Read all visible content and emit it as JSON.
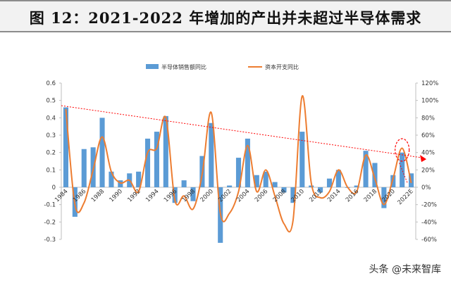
{
  "title": "图 12：2021-2022 年增加的产出并未超过半导体需求",
  "watermark": "头条 @未来智库",
  "colors": {
    "bar": "#5b9bd5",
    "line": "#ed7d31",
    "trend": "#ff0000",
    "highlight": "#ff0000"
  },
  "chart_data": {
    "type": "bar",
    "legend_position": "top",
    "x_tick_labels": [
      "1984",
      "1986",
      "1988",
      "1990",
      "1992",
      "1994",
      "1996",
      "1998",
      "2000",
      "2002",
      "2004",
      "2006",
      "2008",
      "2010",
      "2012",
      "2014",
      "2016",
      "2018",
      "2020",
      "2022E"
    ],
    "categories": [
      "1984",
      "1985",
      "1986",
      "1987",
      "1988",
      "1989",
      "1990",
      "1991",
      "1992",
      "1993",
      "1994",
      "1995",
      "1996",
      "1997",
      "1998",
      "1999",
      "2000",
      "2001",
      "2002",
      "2003",
      "2004",
      "2005",
      "2006",
      "2007",
      "2008",
      "2009",
      "2010",
      "2011",
      "2012",
      "2013",
      "2014",
      "2015",
      "2016",
      "2017",
      "2018",
      "2019",
      "2020",
      "2021",
      "2022E"
    ],
    "left_axis": {
      "ylim": [
        -0.3,
        0.6
      ],
      "ticks": [
        "-0.3",
        "-0.2",
        "-0.1",
        "0",
        "0.1",
        "0.2",
        "0.3",
        "0.4",
        "0.5",
        "0.6"
      ]
    },
    "right_axis": {
      "ylim": [
        -60,
        120
      ],
      "ticks": [
        "-60%",
        "-40%",
        "-20%",
        "0%",
        "20%",
        "40%",
        "60%",
        "80%",
        "100%",
        "120%"
      ]
    },
    "series": [
      {
        "name": "半导体销售额同比",
        "type": "bar",
        "axis": "left",
        "values": [
          0.46,
          -0.17,
          0.22,
          0.23,
          0.4,
          0.09,
          0.04,
          0.08,
          0.09,
          0.28,
          0.32,
          0.41,
          -0.09,
          0.04,
          -0.08,
          0.18,
          0.37,
          -0.32,
          0.01,
          0.17,
          0.28,
          0.07,
          0.09,
          0.03,
          -0.03,
          -0.09,
          0.32,
          0.01,
          -0.03,
          0.05,
          0.1,
          0.0,
          0.01,
          0.21,
          0.14,
          -0.12,
          0.07,
          0.2,
          0.08
        ]
      },
      {
        "name": "资本开支同比",
        "type": "line",
        "axis": "right",
        "values": [
          90,
          -20,
          -18,
          20,
          58,
          18,
          5,
          8,
          -5,
          40,
          45,
          80,
          -15,
          -10,
          -25,
          15,
          86,
          -30,
          -30,
          -5,
          48,
          -5,
          20,
          -10,
          -42,
          -38,
          105,
          5,
          -12,
          -5,
          20,
          0,
          -5,
          37,
          10,
          -20,
          10,
          45,
          5
        ]
      }
    ],
    "trend_line": {
      "start": [
        "1984",
        0.47
      ],
      "end": [
        "2022E",
        0.17
      ]
    }
  }
}
